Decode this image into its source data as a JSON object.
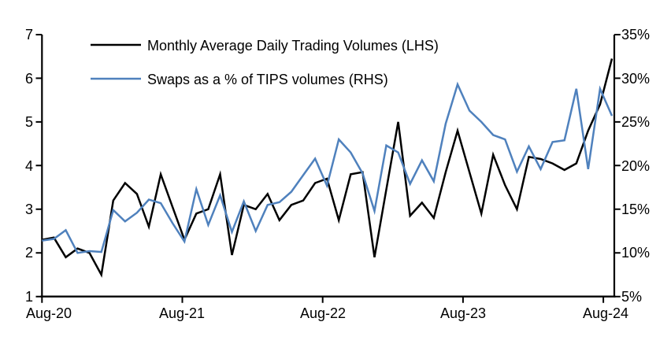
{
  "chart_data": {
    "type": "line",
    "title": "",
    "x": [
      "Aug-20",
      "Sep-20",
      "Oct-20",
      "Nov-20",
      "Dec-20",
      "Jan-21",
      "Feb-21",
      "Mar-21",
      "Apr-21",
      "May-21",
      "Jun-21",
      "Jul-21",
      "Aug-21",
      "Sep-21",
      "Oct-21",
      "Nov-21",
      "Dec-21",
      "Jan-22",
      "Feb-22",
      "Mar-22",
      "Apr-22",
      "May-22",
      "Jun-22",
      "Jul-22",
      "Aug-22",
      "Sep-22",
      "Oct-22",
      "Nov-22",
      "Dec-22",
      "Jan-23",
      "Feb-23",
      "Mar-23",
      "Apr-23",
      "May-23",
      "Jun-23",
      "Jul-23",
      "Aug-23",
      "Sep-23",
      "Oct-23",
      "Nov-23",
      "Dec-23",
      "Jan-24",
      "Feb-24",
      "Mar-24",
      "Apr-24",
      "May-24",
      "Jun-24",
      "Jul-24",
      "Aug-24"
    ],
    "x_tick_labels": [
      "Aug-20",
      "Aug-21",
      "Aug-22",
      "Aug-23",
      "Aug-24"
    ],
    "series": [
      {
        "name": "Monthly Average Daily Trading Volumes (LHS)",
        "axis": "left",
        "color": "#000000",
        "values": [
          2.3,
          2.35,
          1.9,
          2.1,
          2.0,
          1.5,
          3.2,
          3.6,
          3.35,
          2.6,
          3.8,
          3.05,
          2.3,
          2.9,
          3.0,
          3.8,
          1.95,
          3.1,
          3.0,
          3.35,
          2.75,
          3.1,
          3.2,
          3.6,
          3.7,
          2.75,
          3.8,
          3.85,
          1.9,
          3.45,
          5.0,
          2.85,
          3.15,
          2.8,
          3.85,
          4.8,
          3.85,
          2.9,
          4.25,
          3.55,
          3.0,
          4.2,
          4.15,
          4.05,
          3.9,
          4.05,
          4.8,
          5.4,
          6.45
        ]
      },
      {
        "name": "Swaps as a % of TIPS volumes (RHS)",
        "axis": "right",
        "color": "#4F81BD",
        "values": [
          11.4,
          11.6,
          12.6,
          10.0,
          10.2,
          10.1,
          14.9,
          13.6,
          14.6,
          16.1,
          15.7,
          13.4,
          11.3,
          17.3,
          13.2,
          16.6,
          12.4,
          15.9,
          12.5,
          15.5,
          15.8,
          17.0,
          18.9,
          20.8,
          17.7,
          23.0,
          21.5,
          19.1,
          14.8,
          22.3,
          21.5,
          17.9,
          20.6,
          18.2,
          24.8,
          29.3,
          26.3,
          25.0,
          23.5,
          23.0,
          19.3,
          22.2,
          19.6,
          22.7,
          22.9,
          28.8,
          19.6,
          28.8,
          25.7
        ]
      }
    ],
    "left_axis": {
      "min": 1,
      "max": 7,
      "ticks": [
        "7",
        "6",
        "5",
        "4",
        "3",
        "2",
        "1"
      ]
    },
    "right_axis": {
      "min": 5,
      "max": 35,
      "ticks": [
        "35%",
        "30%",
        "25%",
        "20%",
        "15%",
        "10%",
        "5%"
      ]
    },
    "grid": false,
    "legend_position": "top-left"
  }
}
